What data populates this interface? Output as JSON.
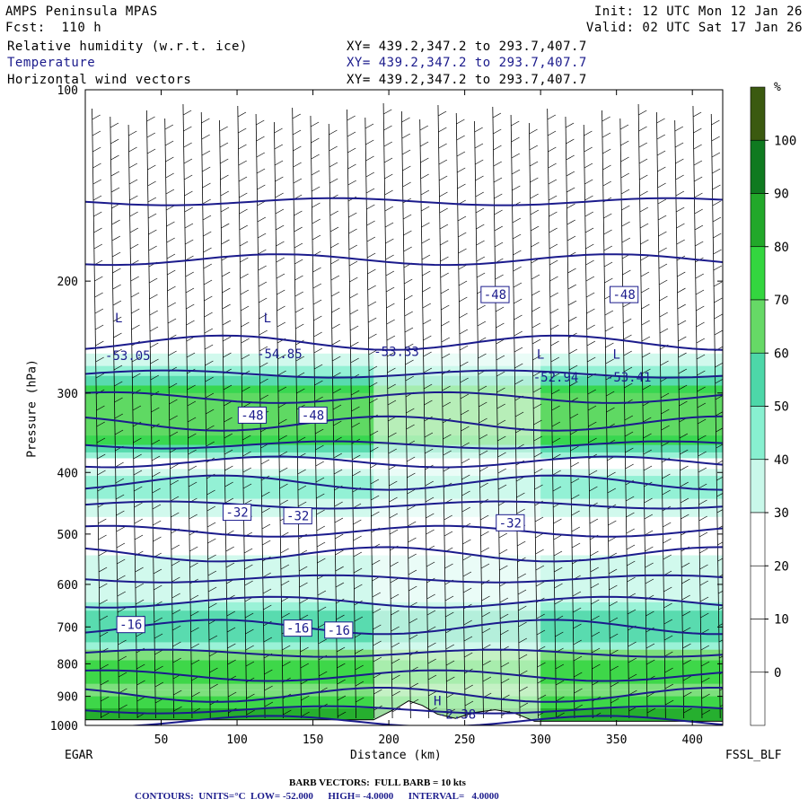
{
  "header": {
    "model": "AMPS Peninsula MPAS",
    "forecast": "Fcst:  110 h",
    "init": "Init: 12 UTC Mon 12 Jan 26",
    "valid": "Valid: 02 UTC Sat 17 Jan 26",
    "fields": [
      {
        "label": "Relative humidity (w.r.t. ice)",
        "xy": "XY= 439.2,347.2 to 293.7,407.7",
        "color": "#000000"
      },
      {
        "label": "Temperature",
        "xy": "XY= 439.2,347.2 to 293.7,407.7",
        "color": "#1b1b8c"
      },
      {
        "label": "Horizontal wind vectors",
        "xy": "XY= 439.2,347.2 to 293.7,407.7",
        "color": "#000000"
      }
    ]
  },
  "axes": {
    "ylabel": "Pressure (hPa)",
    "xlabel": "Distance (km)",
    "left_station": "EGAR",
    "right_station": "FSSL_BLF"
  },
  "colorbar": {
    "unit": "%",
    "ticks": [
      "100",
      "90",
      "80",
      "70",
      "60",
      "50",
      "40",
      "30",
      "20",
      "10",
      "0"
    ],
    "colors": [
      "#3b5a10",
      "#0f7a20",
      "#22a82a",
      "#33d63f",
      "#66d966",
      "#4dd7a8",
      "#88f0d0",
      "#c9f8ea",
      "#ffffff",
      "#ffffff",
      "#ffffff",
      "#ffffff"
    ]
  },
  "footer": {
    "barbs": "BARB VECTORS:  FULL BARB = 10 kts",
    "contours": "CONTOURS:  UNITS=°C  LOW= -52.000      HIGH= -4.0000      INTERVAL=   4.0000"
  },
  "chart_data": {
    "type": "cross-section",
    "xlim": [
      0,
      420
    ],
    "ylim": [
      1000,
      100
    ],
    "y_scale": "log-pressure",
    "xticks": [
      50,
      100,
      150,
      200,
      250,
      300,
      350,
      400
    ],
    "yticks": [
      100,
      200,
      300,
      400,
      500,
      600,
      700,
      800,
      900,
      1000
    ],
    "temperature_labels": [
      {
        "text": "-53.05",
        "x": 28,
        "p": 262
      },
      {
        "text": "-54.85",
        "x": 128,
        "p": 260
      },
      {
        "text": "-53.33",
        "x": 205,
        "p": 258
      },
      {
        "text": "-52.94",
        "x": 310,
        "p": 283
      },
      {
        "text": "-53.41",
        "x": 358,
        "p": 283
      },
      {
        "text": "-48",
        "x": 270,
        "p": 210
      },
      {
        "text": "-48",
        "x": 355,
        "p": 210
      },
      {
        "text": "-48",
        "x": 110,
        "p": 325
      },
      {
        "text": "-48",
        "x": 150,
        "p": 325
      },
      {
        "text": "-32",
        "x": 100,
        "p": 462
      },
      {
        "text": "-32",
        "x": 140,
        "p": 468
      },
      {
        "text": "-32",
        "x": 280,
        "p": 480
      },
      {
        "text": "-16",
        "x": 30,
        "p": 694
      },
      {
        "text": "-16",
        "x": 140,
        "p": 703
      },
      {
        "text": "-16",
        "x": 167,
        "p": 708
      },
      {
        "text": "-2.38",
        "x": 245,
        "p": 960
      }
    ],
    "extrema": [
      {
        "text": "L",
        "x": 22,
        "p": 232
      },
      {
        "text": "L",
        "x": 120,
        "p": 232
      },
      {
        "text": "L",
        "x": 300,
        "p": 265
      },
      {
        "text": "L",
        "x": 350,
        "p": 265
      },
      {
        "text": "H",
        "x": 232,
        "p": 930
      }
    ],
    "isotherm_levels_hpa": [
      150,
      185,
      250,
      280,
      305,
      335,
      362,
      385,
      415,
      450,
      495,
      538,
      588,
      640,
      700,
      770,
      835,
      895,
      945,
      985
    ],
    "terrain": [
      [
        0,
        980
      ],
      [
        190,
        980
      ],
      [
        205,
        940
      ],
      [
        213,
        915
      ],
      [
        222,
        930
      ],
      [
        232,
        960
      ],
      [
        244,
        975
      ],
      [
        256,
        955
      ],
      [
        270,
        945
      ],
      [
        282,
        955
      ],
      [
        296,
        985
      ],
      [
        420,
        985
      ]
    ]
  }
}
